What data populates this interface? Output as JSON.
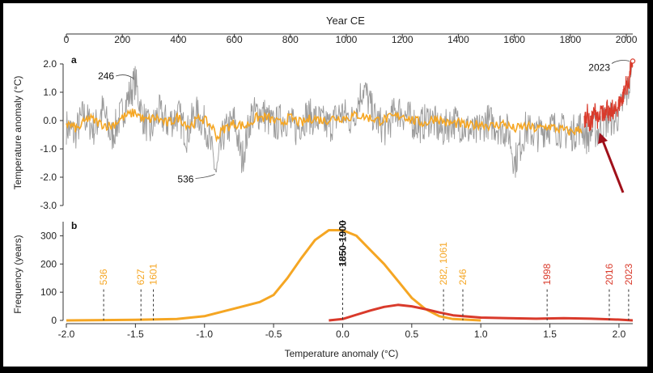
{
  "chart_data": [
    {
      "panel_label": "a",
      "type": "line",
      "xlabel": "Year CE",
      "ylabel": "Temperature anomaly (°C)",
      "xlim": [
        0,
        2023
      ],
      "ylim": [
        -3.0,
        2.0
      ],
      "x_ticks": [
        "0",
        "200",
        "400",
        "600",
        "800",
        "1000",
        "1200",
        "1400",
        "1600",
        "1800",
        "2000"
      ],
      "y_ticks": [
        "2.0",
        "1.0",
        "0.0",
        "-1.0",
        "-2.0",
        "-3.0"
      ],
      "series": [
        {
          "color": "#9a9a9a",
          "style": "annual",
          "points": [
            [
              0,
              -0.2
            ],
            [
              30,
              -0.5
            ],
            [
              60,
              0.2
            ],
            [
              100,
              -0.3
            ],
            [
              130,
              0.4
            ],
            [
              160,
              -0.6
            ],
            [
              200,
              0.3
            ],
            [
              246,
              1.4
            ],
            [
              270,
              0.2
            ],
            [
              300,
              -0.4
            ],
            [
              330,
              0.3
            ],
            [
              360,
              -0.1
            ],
            [
              400,
              0.2
            ],
            [
              430,
              -0.5
            ],
            [
              460,
              0.3
            ],
            [
              500,
              -0.2
            ],
            [
              536,
              -1.9
            ],
            [
              560,
              -0.5
            ],
            [
              600,
              0.0
            ],
            [
              627,
              -1.4
            ],
            [
              660,
              0.2
            ],
            [
              700,
              0.3
            ],
            [
              740,
              -0.2
            ],
            [
              780,
              0.1
            ],
            [
              820,
              -0.3
            ],
            [
              860,
              0.2
            ],
            [
              900,
              0.0
            ],
            [
              940,
              -0.2
            ],
            [
              980,
              0.3
            ],
            [
              1020,
              0.0
            ],
            [
              1061,
              1.2
            ],
            [
              1100,
              0.1
            ],
            [
              1140,
              -0.3
            ],
            [
              1180,
              0.4
            ],
            [
              1220,
              0.1
            ],
            [
              1260,
              -0.2
            ],
            [
              1300,
              0.1
            ],
            [
              1340,
              -0.4
            ],
            [
              1380,
              0.0
            ],
            [
              1420,
              -0.2
            ],
            [
              1460,
              -0.5
            ],
            [
              1500,
              0.0
            ],
            [
              1540,
              -0.2
            ],
            [
              1580,
              -0.4
            ],
            [
              1601,
              -1.5
            ],
            [
              1640,
              -0.3
            ],
            [
              1680,
              -0.5
            ],
            [
              1720,
              -0.2
            ],
            [
              1760,
              -0.3
            ],
            [
              1800,
              -0.5
            ],
            [
              1840,
              -0.2
            ],
            [
              1860,
              -0.6
            ],
            [
              1880,
              -0.3
            ],
            [
              1900,
              -0.4
            ],
            [
              1920,
              -0.1
            ],
            [
              1940,
              0.1
            ],
            [
              1960,
              0.0
            ],
            [
              1980,
              0.4
            ],
            [
              2000,
              0.9
            ],
            [
              2010,
              1.2
            ],
            [
              2016,
              1.9
            ],
            [
              2023,
              2.1
            ]
          ]
        },
        {
          "color": "#f5a623",
          "style": "smoothed",
          "points": [
            [
              0,
              -0.1
            ],
            [
              40,
              -0.3
            ],
            [
              80,
              0.1
            ],
            [
              120,
              -0.1
            ],
            [
              160,
              -0.2
            ],
            [
              200,
              0.1
            ],
            [
              246,
              0.3
            ],
            [
              280,
              0.0
            ],
            [
              320,
              0.1
            ],
            [
              360,
              -0.1
            ],
            [
              400,
              0.1
            ],
            [
              440,
              -0.2
            ],
            [
              480,
              0.1
            ],
            [
              520,
              -0.2
            ],
            [
              540,
              -0.6
            ],
            [
              560,
              -0.3
            ],
            [
              600,
              -0.1
            ],
            [
              640,
              -0.2
            ],
            [
              680,
              0.1
            ],
            [
              720,
              0.1
            ],
            [
              760,
              -0.1
            ],
            [
              800,
              0.1
            ],
            [
              840,
              -0.1
            ],
            [
              880,
              0.1
            ],
            [
              920,
              0.0
            ],
            [
              960,
              0.1
            ],
            [
              1000,
              0.1
            ],
            [
              1040,
              0.2
            ],
            [
              1080,
              0.1
            ],
            [
              1120,
              0.0
            ],
            [
              1160,
              0.1
            ],
            [
              1200,
              0.2
            ],
            [
              1240,
              0.0
            ],
            [
              1280,
              -0.1
            ],
            [
              1320,
              0.1
            ],
            [
              1360,
              -0.1
            ],
            [
              1400,
              -0.1
            ],
            [
              1440,
              -0.2
            ],
            [
              1480,
              -0.1
            ],
            [
              1520,
              -0.2
            ],
            [
              1560,
              -0.1
            ],
            [
              1600,
              -0.3
            ],
            [
              1640,
              -0.2
            ],
            [
              1680,
              -0.3
            ],
            [
              1720,
              -0.2
            ],
            [
              1760,
              -0.3
            ],
            [
              1800,
              -0.4
            ],
            [
              1840,
              -0.3
            ]
          ]
        },
        {
          "color": "#d93a2b",
          "style": "instrumental",
          "points": [
            [
              1850,
              0.0
            ],
            [
              1860,
              0.3
            ],
            [
              1870,
              -0.2
            ],
            [
              1880,
              0.1
            ],
            [
              1890,
              0.4
            ],
            [
              1900,
              -0.1
            ],
            [
              1910,
              0.3
            ],
            [
              1920,
              0.2
            ],
            [
              1930,
              0.6
            ],
            [
              1940,
              0.1
            ],
            [
              1950,
              0.4
            ],
            [
              1960,
              0.3
            ],
            [
              1970,
              0.5
            ],
            [
              1980,
              0.7
            ],
            [
              1990,
              0.9
            ],
            [
              1998,
              1.3
            ],
            [
              2005,
              1.2
            ],
            [
              2010,
              1.4
            ],
            [
              2016,
              1.9
            ],
            [
              2020,
              1.7
            ],
            [
              2023,
              2.1
            ]
          ]
        }
      ],
      "annotations": [
        {
          "text": "246",
          "x": 246,
          "y": 1.4
        },
        {
          "text": "536",
          "x": 536,
          "y": -1.9
        },
        {
          "text": "2023",
          "x": 2023,
          "y": 2.1
        }
      ]
    },
    {
      "panel_label": "b",
      "type": "area",
      "xlabel": "Temperature anomaly (°C)",
      "ylabel": "Frequency (years)",
      "xlim": [
        -2.0,
        2.1
      ],
      "ylim": [
        0,
        350
      ],
      "x_ticks": [
        "-2.0",
        "-1.5",
        "-1.0",
        "-0.5",
        "0.0",
        "0.5",
        "1.0",
        "1.5",
        "2.0"
      ],
      "y_ticks": [
        "0",
        "100",
        "200",
        "300"
      ],
      "series": [
        {
          "color": "#f5a623",
          "x": [
            -2.0,
            -1.5,
            -1.2,
            -1.0,
            -0.8,
            -0.6,
            -0.5,
            -0.4,
            -0.3,
            -0.2,
            -0.1,
            0.0,
            0.1,
            0.2,
            0.3,
            0.4,
            0.5,
            0.6,
            0.7,
            0.8,
            1.0
          ],
          "y": [
            0,
            2,
            5,
            15,
            40,
            65,
            90,
            150,
            220,
            285,
            320,
            320,
            300,
            250,
            200,
            140,
            80,
            40,
            15,
            5,
            0
          ]
        },
        {
          "color": "#d93a2b",
          "x": [
            -0.1,
            0.0,
            0.1,
            0.2,
            0.3,
            0.4,
            0.5,
            0.6,
            0.7,
            0.8,
            1.0,
            1.2,
            1.4,
            1.6,
            1.8,
            2.0,
            2.1
          ],
          "y": [
            0,
            5,
            20,
            35,
            48,
            55,
            50,
            40,
            28,
            18,
            10,
            8,
            6,
            8,
            6,
            3,
            0
          ]
        }
      ],
      "markers": [
        {
          "label": "536",
          "x": -1.73,
          "color": "#f5a623"
        },
        {
          "label": "627",
          "x": -1.46,
          "color": "#f5a623"
        },
        {
          "label": "1601",
          "x": -1.37,
          "color": "#f5a623"
        },
        {
          "label": "1850-1900",
          "x": 0.0,
          "color": "#111111"
        },
        {
          "label": "282, 1061",
          "x": 0.73,
          "color": "#f5a623"
        },
        {
          "label": "246",
          "x": 0.87,
          "color": "#f5a623"
        },
        {
          "label": "1998",
          "x": 1.48,
          "color": "#d93a2b"
        },
        {
          "label": "2016",
          "x": 1.93,
          "color": "#d93a2b"
        },
        {
          "label": "2023",
          "x": 2.07,
          "color": "#d93a2b"
        }
      ]
    }
  ]
}
